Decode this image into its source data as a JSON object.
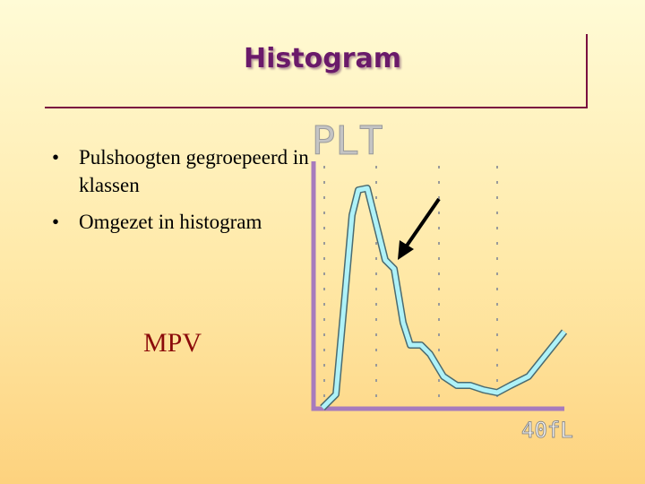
{
  "header": {
    "title": "Histogram"
  },
  "bullets": [
    "Pulshoogten gegroepeerd in klassen",
    "Omgezet in histogram"
  ],
  "annotation": "MPV",
  "figure": {
    "label": "PLT",
    "axis_label": "40fL"
  }
}
